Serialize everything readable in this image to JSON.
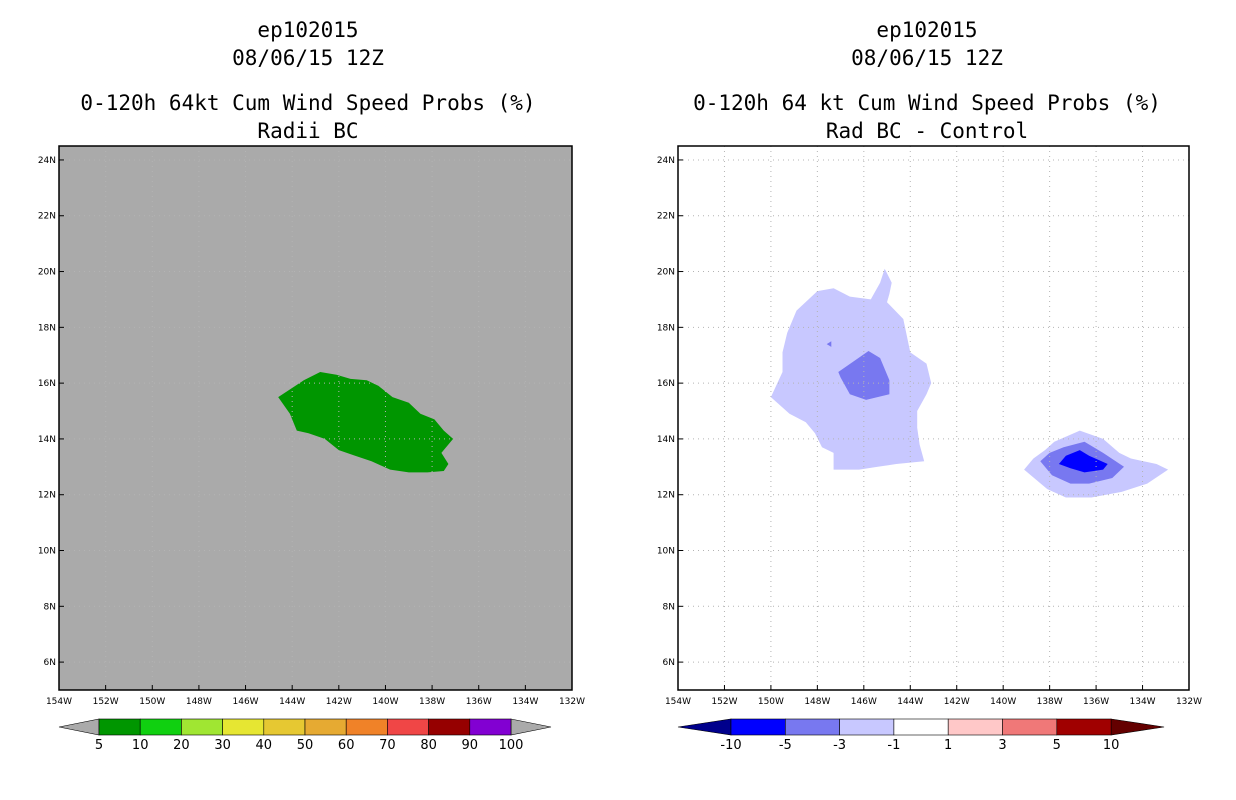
{
  "chart_data": [
    {
      "type": "contour-map",
      "title_lines": [
        "ep102015",
        "08/06/15 12Z"
      ],
      "subtitle": "0-120h 64kt Cum Wind Speed Probs (%)",
      "subtitle2": "Radii BC",
      "x_ticks": [
        "154W",
        "152W",
        "150W",
        "148W",
        "146W",
        "144W",
        "142W",
        "140W",
        "138W",
        "136W",
        "134W",
        "132W"
      ],
      "y_ticks": [
        "24N",
        "22N",
        "20N",
        "18N",
        "16N",
        "14N",
        "12N",
        "10N",
        "8N",
        "6N"
      ],
      "xlim_lon": [
        -154,
        -132
      ],
      "ylim_lat": [
        5,
        24.5
      ],
      "background_color": "#aaaaaa",
      "grid": true,
      "regions": [
        {
          "level": "5-10",
          "color": "#009600",
          "lonlat": [
            [
              -144.6,
              15.5
            ],
            [
              -143.5,
              16.1
            ],
            [
              -142.8,
              16.4
            ],
            [
              -142.1,
              16.3
            ],
            [
              -141.5,
              16.15
            ],
            [
              -140.8,
              16.1
            ],
            [
              -140.3,
              15.9
            ],
            [
              -139.7,
              15.5
            ],
            [
              -139.0,
              15.3
            ],
            [
              -138.5,
              14.9
            ],
            [
              -137.9,
              14.7
            ],
            [
              -137.5,
              14.3
            ],
            [
              -137.1,
              14.0
            ],
            [
              -137.6,
              13.5
            ],
            [
              -137.3,
              13.1
            ],
            [
              -137.5,
              12.85
            ],
            [
              -138.2,
              12.8
            ],
            [
              -139.0,
              12.8
            ],
            [
              -139.8,
              12.9
            ],
            [
              -140.6,
              13.2
            ],
            [
              -141.3,
              13.4
            ],
            [
              -142.0,
              13.6
            ],
            [
              -142.6,
              14.0
            ],
            [
              -143.3,
              14.2
            ],
            [
              -143.8,
              14.3
            ],
            [
              -144.1,
              14.9
            ]
          ]
        }
      ],
      "colorbar": {
        "labels": [
          "5",
          "10",
          "20",
          "30",
          "40",
          "50",
          "60",
          "70",
          "80",
          "90",
          "100"
        ],
        "colors": [
          "#009600",
          "#10d010",
          "#a0e632",
          "#e6e632",
          "#e6c832",
          "#e6aa32",
          "#f08228",
          "#f04646",
          "#960000",
          "#8200d2"
        ],
        "end_color": "#aaaaaa"
      }
    },
    {
      "type": "contour-map",
      "title_lines": [
        "ep102015",
        "08/06/15 12Z"
      ],
      "subtitle": "0-120h 64 kt Cum Wind Speed Probs (%)",
      "subtitle2": "Rad BC - Control",
      "x_ticks": [
        "154W",
        "152W",
        "150W",
        "148W",
        "146W",
        "144W",
        "142W",
        "140W",
        "138W",
        "136W",
        "134W",
        "132W"
      ],
      "y_ticks": [
        "24N",
        "22N",
        "20N",
        "18N",
        "16N",
        "14N",
        "12N",
        "10N",
        "8N",
        "6N"
      ],
      "xlim_lon": [
        -154,
        -132
      ],
      "ylim_lat": [
        5,
        24.5
      ],
      "background_color": "#ffffff",
      "grid": true,
      "regions": [
        {
          "level": "-3 to -1",
          "color": "#c8c8ff",
          "lonlat": [
            [
              -146.6,
              19.1
            ],
            [
              -145.7,
              19.0
            ],
            [
              -145.3,
              19.6
            ],
            [
              -145.1,
              20.1
            ],
            [
              -144.8,
              19.6
            ],
            [
              -144.9,
              19.2
            ],
            [
              -145.0,
              18.9
            ],
            [
              -144.3,
              18.3
            ],
            [
              -144.0,
              17.1
            ],
            [
              -143.3,
              16.7
            ],
            [
              -143.1,
              16.0
            ],
            [
              -143.3,
              15.6
            ],
            [
              -143.7,
              15.0
            ],
            [
              -143.7,
              14.4
            ],
            [
              -143.6,
              13.8
            ],
            [
              -143.4,
              13.2
            ],
            [
              -144.6,
              13.1
            ],
            [
              -145.4,
              13.0
            ],
            [
              -146.2,
              12.9
            ],
            [
              -147.3,
              12.9
            ],
            [
              -147.3,
              13.5
            ],
            [
              -147.8,
              13.7
            ],
            [
              -148.1,
              14.2
            ],
            [
              -148.5,
              14.6
            ],
            [
              -149.2,
              14.9
            ],
            [
              -150.0,
              15.5
            ],
            [
              -149.5,
              16.4
            ],
            [
              -149.5,
              17.1
            ],
            [
              -149.3,
              17.8
            ],
            [
              -148.9,
              18.6
            ],
            [
              -148.0,
              19.3
            ],
            [
              -147.3,
              19.4
            ]
          ]
        },
        {
          "level": "-5 to -3",
          "color": "#7878f0",
          "lonlat": [
            [
              -146.4,
              16.8
            ],
            [
              -145.8,
              17.15
            ],
            [
              -145.3,
              16.9
            ],
            [
              -144.9,
              16.1
            ],
            [
              -144.9,
              15.6
            ],
            [
              -145.9,
              15.4
            ],
            [
              -146.6,
              15.6
            ],
            [
              -147.0,
              16.2
            ],
            [
              -147.1,
              16.4
            ]
          ]
        },
        {
          "level": "-5 to -3",
          "color": "#7878f0",
          "lonlat": [
            [
              -147.6,
              17.4
            ],
            [
              -147.4,
              17.5
            ],
            [
              -147.4,
              17.3
            ]
          ]
        },
        {
          "level": "-3 to -1",
          "color": "#c8c8ff",
          "lonlat": [
            [
              -137.8,
              13.9
            ],
            [
              -136.7,
              14.3
            ],
            [
              -135.7,
              14.0
            ],
            [
              -135.0,
              13.5
            ],
            [
              -134.5,
              13.3
            ],
            [
              -133.4,
              13.1
            ],
            [
              -132.9,
              12.9
            ],
            [
              -133.8,
              12.4
            ],
            [
              -134.9,
              12.1
            ],
            [
              -136.2,
              11.9
            ],
            [
              -137.3,
              11.9
            ],
            [
              -138.1,
              12.2
            ],
            [
              -139.1,
              12.9
            ],
            [
              -138.7,
              13.3
            ],
            [
              -138.2,
              13.6
            ]
          ]
        },
        {
          "level": "-5 to -3",
          "color": "#7878f0",
          "lonlat": [
            [
              -137.4,
              13.7
            ],
            [
              -136.5,
              13.9
            ],
            [
              -135.7,
              13.5
            ],
            [
              -134.8,
              13.0
            ],
            [
              -135.3,
              12.6
            ],
            [
              -136.3,
              12.4
            ],
            [
              -137.1,
              12.4
            ],
            [
              -137.9,
              12.7
            ],
            [
              -138.4,
              13.2
            ],
            [
              -138.0,
              13.5
            ]
          ]
        },
        {
          "level": "-10 to -5",
          "color": "#0000ff",
          "lonlat": [
            [
              -137.3,
              13.4
            ],
            [
              -136.7,
              13.6
            ],
            [
              -136.3,
              13.4
            ],
            [
              -135.5,
              13.1
            ],
            [
              -135.7,
              12.9
            ],
            [
              -136.5,
              12.8
            ],
            [
              -137.1,
              12.95
            ],
            [
              -137.6,
              13.1
            ]
          ]
        }
      ],
      "colorbar": {
        "labels": [
          "-10",
          "-5",
          "-3",
          "-1",
          "1",
          "3",
          "5",
          "10"
        ],
        "colors": [
          "#0000ff",
          "#7878f0",
          "#c8c8ff",
          "#ffffff",
          "#ffc8c8",
          "#f07878",
          "#a00000"
        ],
        "left_end_color": "#00008c",
        "right_end_color": "#640000"
      }
    }
  ]
}
